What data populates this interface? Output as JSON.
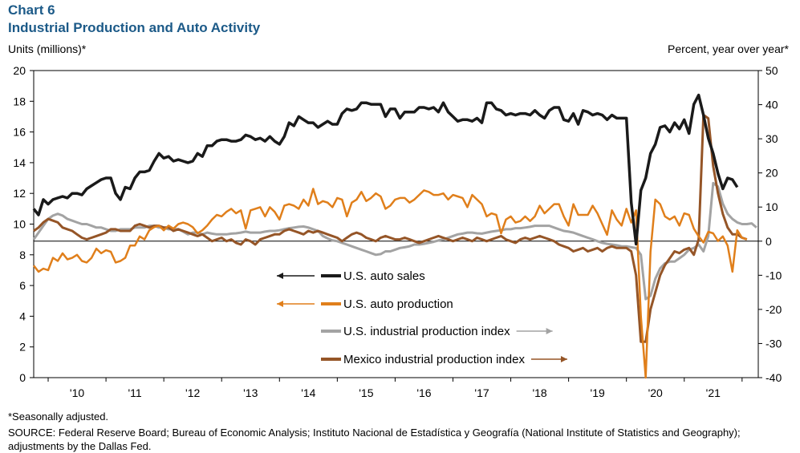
{
  "header": {
    "chart_label": "Chart 6",
    "title": "Industrial Production and Auto Activity"
  },
  "axes": {
    "left_unit": "Units (millions)*",
    "right_unit": "Percent, year over year*"
  },
  "footer": {
    "note": "*Seasonally adjusted.",
    "source": "SOURCE: Federal Reserve Board; Bureau of Economic Analysis; Instituto Nacional de Estadística y Geografía (National Institute of Statistics and Geography); adjustments by the Dallas Fed."
  },
  "chart_data": {
    "type": "line",
    "title": "Industrial Production and Auto Activity",
    "x_start": 2009.75,
    "x_step": 0.08333,
    "x_ticks": [
      {
        "label": "'10",
        "value": 2010.5
      },
      {
        "label": "'11",
        "value": 2011.5
      },
      {
        "label": "'12",
        "value": 2012.5
      },
      {
        "label": "'13",
        "value": 2013.5
      },
      {
        "label": "'14",
        "value": 2014.5
      },
      {
        "label": "'15",
        "value": 2015.5
      },
      {
        "label": "'16",
        "value": 2016.5
      },
      {
        "label": "'17",
        "value": 2017.5
      },
      {
        "label": "'18",
        "value": 2018.5
      },
      {
        "label": "'19",
        "value": 2019.5
      },
      {
        "label": "'20",
        "value": 2020.5
      },
      {
        "label": "'21",
        "value": 2021.5
      }
    ],
    "xlim": [
      2009.75,
      2022.28
    ],
    "y_left": {
      "label": "Units (millions)*",
      "lim": [
        0,
        20
      ],
      "ticks": [
        0,
        2,
        4,
        6,
        8,
        10,
        12,
        14,
        16,
        18,
        20
      ]
    },
    "y_right": {
      "label": "Percent, year over year*",
      "lim": [
        -40,
        50
      ],
      "ticks": [
        -40,
        -30,
        -20,
        -10,
        0,
        10,
        20,
        30,
        40,
        50
      ]
    },
    "series": [
      {
        "name": "U.S. auto sales",
        "axis": "left",
        "color": "#1a1a1a",
        "arrow": "left",
        "values": [
          11.0,
          10.6,
          11.6,
          11.3,
          11.6,
          11.7,
          11.8,
          11.7,
          12.0,
          12.0,
          11.9,
          12.3,
          12.5,
          12.7,
          12.9,
          13.0,
          13.0,
          12.0,
          11.6,
          12.4,
          12.3,
          13.0,
          13.4,
          13.4,
          13.5,
          14.1,
          14.6,
          14.3,
          14.4,
          14.1,
          14.2,
          14.1,
          14.0,
          14.1,
          14.6,
          14.4,
          15.1,
          15.1,
          15.4,
          15.5,
          15.5,
          15.4,
          15.4,
          15.5,
          15.8,
          15.7,
          15.5,
          15.6,
          15.4,
          15.7,
          15.4,
          15.2,
          15.7,
          16.6,
          16.4,
          17.0,
          16.8,
          16.6,
          16.6,
          16.3,
          16.5,
          16.7,
          16.5,
          16.5,
          17.2,
          17.5,
          17.4,
          17.5,
          17.9,
          17.9,
          17.8,
          17.8,
          17.8,
          17.0,
          17.5,
          17.5,
          16.9,
          17.3,
          17.3,
          17.3,
          17.6,
          17.6,
          17.5,
          17.6,
          17.3,
          17.9,
          17.3,
          17.0,
          16.7,
          16.8,
          16.8,
          16.7,
          16.9,
          16.6,
          17.9,
          17.9,
          17.5,
          17.4,
          17.1,
          17.2,
          17.1,
          17.2,
          17.2,
          17.1,
          17.4,
          17.1,
          16.9,
          17.4,
          17.6,
          17.6,
          16.8,
          16.7,
          17.2,
          16.5,
          17.4,
          17.3,
          17.1,
          17.2,
          17.1,
          16.8,
          17.1,
          16.9,
          16.9,
          16.9,
          11.4,
          8.7,
          12.2,
          13.0,
          14.6,
          15.2,
          16.3,
          16.4,
          16.0,
          16.6,
          16.2,
          16.8,
          15.9,
          17.8,
          18.4,
          17.1,
          15.6,
          14.6,
          13.3,
          12.3,
          13.0,
          12.9,
          12.4
        ]
      },
      {
        "name": "U.S. auto production",
        "axis": "left",
        "color": "#e07f1b",
        "arrow": "left",
        "values": [
          7.3,
          6.9,
          7.1,
          7.0,
          7.8,
          7.6,
          8.1,
          7.7,
          7.8,
          8.0,
          7.6,
          7.5,
          7.8,
          8.4,
          8.1,
          8.3,
          8.2,
          7.5,
          7.6,
          7.8,
          8.6,
          8.6,
          9.2,
          9.0,
          9.6,
          9.8,
          9.9,
          9.6,
          9.9,
          9.7,
          10.0,
          10.1,
          10.0,
          9.8,
          9.4,
          9.6,
          9.9,
          10.3,
          10.6,
          10.5,
          10.8,
          11.0,
          10.7,
          10.9,
          9.7,
          10.9,
          11.0,
          11.1,
          10.5,
          11.1,
          10.8,
          10.3,
          11.2,
          11.3,
          11.2,
          11.0,
          11.6,
          11.2,
          12.3,
          11.3,
          11.5,
          11.4,
          11.1,
          11.7,
          11.6,
          10.5,
          11.4,
          11.6,
          12.1,
          11.5,
          11.7,
          12.0,
          11.8,
          11.0,
          11.2,
          11.6,
          11.7,
          11.7,
          11.4,
          11.6,
          11.9,
          12.2,
          12.1,
          11.9,
          11.9,
          12.0,
          11.6,
          11.9,
          11.8,
          11.7,
          11.1,
          11.9,
          11.6,
          11.3,
          10.5,
          10.7,
          10.6,
          9.4,
          10.3,
          10.5,
          10.1,
          10.2,
          10.5,
          10.2,
          10.5,
          11.2,
          10.7,
          11.0,
          11.3,
          11.3,
          10.5,
          9.9,
          11.3,
          10.6,
          10.6,
          10.6,
          11.2,
          10.7,
          10.0,
          9.3,
          10.9,
          10.3,
          9.9,
          11.0,
          10.1,
          10.9,
          4.0,
          0.0,
          8.2,
          11.6,
          11.3,
          10.5,
          10.3,
          10.5,
          9.9,
          10.7,
          10.6,
          9.7,
          9.2,
          8.8,
          9.5,
          9.4,
          8.9,
          9.2,
          8.6,
          6.9,
          9.6,
          9.1,
          9.0
        ]
      },
      {
        "name": "U.S. industrial production index",
        "axis": "right",
        "color": "#a3a3a3",
        "arrow": "right",
        "values": [
          0.5,
          2.5,
          4.5,
          6.5,
          7.5,
          8.0,
          7.5,
          6.5,
          6.0,
          5.5,
          5.0,
          5.0,
          4.5,
          4.0,
          4.0,
          3.5,
          3.0,
          3.0,
          3.5,
          3.5,
          3.5,
          4.0,
          4.0,
          4.0,
          4.5,
          4.5,
          4.0,
          4.0,
          3.5,
          3.5,
          3.5,
          2.8,
          2.0,
          2.5,
          2.5,
          2.0,
          2.5,
          2.2,
          2.0,
          2.0,
          2.0,
          2.2,
          2.3,
          2.5,
          2.8,
          2.5,
          2.5,
          2.5,
          2.8,
          3.0,
          3.0,
          3.2,
          3.5,
          3.8,
          4.0,
          4.2,
          4.3,
          4.0,
          3.5,
          3.0,
          1.5,
          0.8,
          0.2,
          0.0,
          -0.5,
          -1.0,
          -1.5,
          -2.0,
          -2.5,
          -3.0,
          -3.5,
          -4.0,
          -3.8,
          -3.0,
          -3.0,
          -2.5,
          -2.0,
          -1.8,
          -1.5,
          -1.0,
          -1.0,
          -0.8,
          -0.5,
          -0.2,
          0.2,
          0.5,
          1.0,
          1.5,
          2.0,
          2.2,
          2.5,
          2.5,
          2.3,
          2.2,
          2.5,
          2.8,
          3.0,
          3.2,
          3.5,
          3.5,
          3.8,
          3.8,
          4.0,
          4.2,
          4.5,
          4.5,
          4.5,
          4.5,
          4.0,
          3.5,
          3.0,
          2.8,
          2.5,
          2.0,
          1.5,
          1.0,
          0.5,
          0.0,
          -0.5,
          -0.8,
          -1.0,
          -1.2,
          -1.5,
          -1.5,
          -1.8,
          -2.0,
          -4.0,
          -17.0,
          -16.0,
          -11.0,
          -8.0,
          -6.5,
          -6.0,
          -6.0,
          -5.0,
          -4.0,
          -2.5,
          -2.0,
          -1.0,
          -3.0,
          1.5,
          17.0,
          16.0,
          11.0,
          8.0,
          6.5,
          5.5,
          5.0,
          5.0,
          5.2,
          4.0
        ]
      },
      {
        "name": "Mexico industrial production index",
        "axis": "right",
        "color": "#955527",
        "arrow": "right",
        "values": [
          3.0,
          4.0,
          5.5,
          6.5,
          6.0,
          5.5,
          4.0,
          3.5,
          3.0,
          2.0,
          1.0,
          0.5,
          1.0,
          1.5,
          2.0,
          2.5,
          3.5,
          3.5,
          3.0,
          3.0,
          3.0,
          4.5,
          5.0,
          4.5,
          4.0,
          4.5,
          4.5,
          4.0,
          4.0,
          3.0,
          3.5,
          3.0,
          2.5,
          2.0,
          1.5,
          2.0,
          1.0,
          0.0,
          0.5,
          1.0,
          0.0,
          0.5,
          -0.5,
          -1.0,
          0.5,
          0.0,
          -1.0,
          0.5,
          1.0,
          1.5,
          2.0,
          2.0,
          3.0,
          3.5,
          3.0,
          2.5,
          2.0,
          3.0,
          2.5,
          3.0,
          2.5,
          2.0,
          1.5,
          1.0,
          0.0,
          1.0,
          2.0,
          2.5,
          2.0,
          1.0,
          0.5,
          0.0,
          1.0,
          1.5,
          1.0,
          0.5,
          0.5,
          1.0,
          0.5,
          0.0,
          -0.5,
          0.0,
          0.5,
          1.0,
          1.5,
          1.0,
          0.5,
          0.0,
          0.5,
          1.0,
          0.5,
          0.0,
          1.0,
          0.5,
          0.0,
          0.5,
          1.0,
          1.5,
          0.5,
          0.0,
          -0.5,
          0.5,
          1.0,
          0.5,
          1.0,
          1.5,
          1.0,
          0.5,
          0.0,
          -1.0,
          -1.5,
          -2.0,
          -3.0,
          -2.5,
          -2.0,
          -3.0,
          -2.5,
          -2.0,
          -3.0,
          -2.0,
          -1.5,
          -2.0,
          -2.0,
          -2.0,
          -3.0,
          -10.0,
          -29.5,
          -29.5,
          -20.0,
          -15.0,
          -10.0,
          -7.0,
          -5.0,
          -3.0,
          -3.5,
          -2.5,
          -2.0,
          -4.0,
          0.5,
          37.0,
          36.0,
          22.0,
          14.0,
          8.0,
          4.0,
          2.0,
          2.0,
          1.0,
          0.5
        ]
      }
    ]
  }
}
